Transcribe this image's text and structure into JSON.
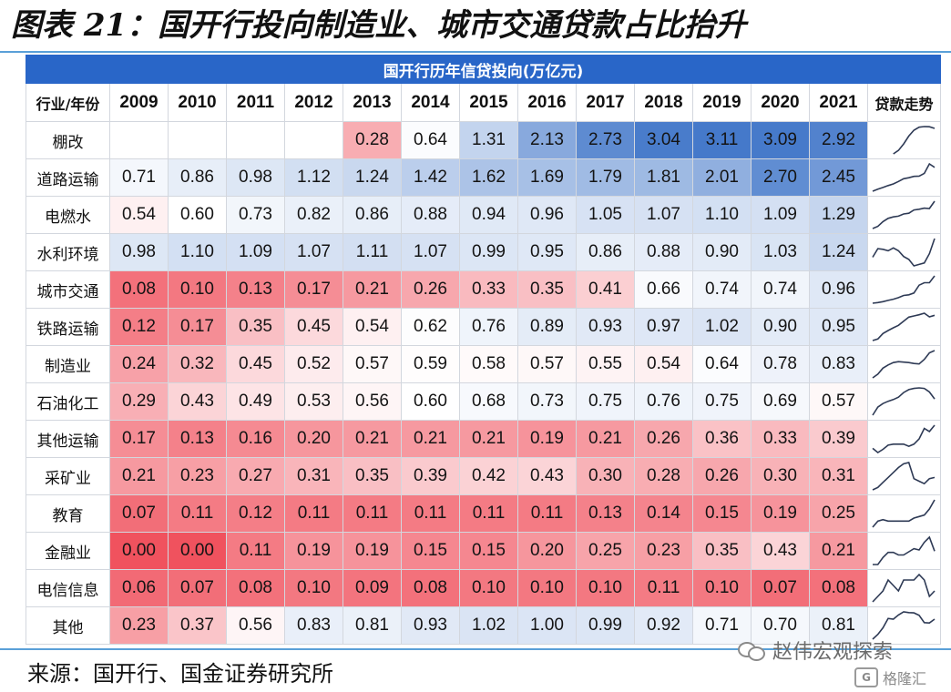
{
  "page": {
    "title": "图表 21：国开行投向制造业、城市交通贷款占比抬升",
    "source": "来源：国开行、国金证券研究所",
    "watermark": "赵伟宏观探索",
    "watermark2_logo": "G",
    "watermark2": "格隆汇"
  },
  "colors": {
    "banner": "#2966c8",
    "high": "#3b72c7",
    "mid": "#ffffff",
    "low": "#f0525e",
    "sparkline": "#2e3a55",
    "rule": "#5aa0d8"
  },
  "chart_data": {
    "type": "heatmap",
    "title": "国开行历年信贷投向(万亿元)",
    "corner_label": "行业/年份",
    "trend_label": "贷款走势",
    "years": [
      "2009",
      "2010",
      "2011",
      "2012",
      "2013",
      "2014",
      "2015",
      "2016",
      "2017",
      "2018",
      "2019",
      "2020",
      "2021"
    ],
    "rows": [
      {
        "label": "棚改",
        "values": [
          null,
          null,
          null,
          null,
          0.28,
          0.64,
          1.31,
          2.13,
          2.73,
          3.04,
          3.11,
          3.09,
          2.92
        ]
      },
      {
        "label": "道路运输",
        "values": [
          0.71,
          0.86,
          0.98,
          1.12,
          1.24,
          1.42,
          1.62,
          1.69,
          1.79,
          1.81,
          2.01,
          2.7,
          2.45
        ]
      },
      {
        "label": "电燃水",
        "values": [
          0.54,
          0.6,
          0.73,
          0.82,
          0.86,
          0.88,
          0.94,
          0.96,
          1.05,
          1.07,
          1.1,
          1.09,
          1.29
        ]
      },
      {
        "label": "水利环境",
        "values": [
          0.98,
          1.1,
          1.09,
          1.07,
          1.11,
          1.07,
          0.99,
          0.95,
          0.86,
          0.88,
          0.9,
          1.03,
          1.24
        ]
      },
      {
        "label": "城市交通",
        "values": [
          0.08,
          0.1,
          0.13,
          0.17,
          0.21,
          0.26,
          0.33,
          0.35,
          0.41,
          0.66,
          0.74,
          0.74,
          0.96
        ]
      },
      {
        "label": "铁路运输",
        "values": [
          0.12,
          0.17,
          0.35,
          0.45,
          0.54,
          0.62,
          0.76,
          0.89,
          0.93,
          0.97,
          1.02,
          0.9,
          0.95
        ]
      },
      {
        "label": "制造业",
        "values": [
          0.24,
          0.32,
          0.45,
          0.52,
          0.57,
          0.59,
          0.58,
          0.57,
          0.55,
          0.54,
          0.64,
          0.78,
          0.83
        ]
      },
      {
        "label": "石油化工",
        "values": [
          0.29,
          0.43,
          0.49,
          0.53,
          0.56,
          0.6,
          0.68,
          0.73,
          0.75,
          0.76,
          0.75,
          0.69,
          0.57
        ]
      },
      {
        "label": "其他运输",
        "values": [
          0.17,
          0.13,
          0.16,
          0.2,
          0.21,
          0.21,
          0.21,
          0.19,
          0.21,
          0.26,
          0.36,
          0.33,
          0.39
        ]
      },
      {
        "label": "采矿业",
        "values": [
          0.21,
          0.23,
          0.27,
          0.31,
          0.35,
          0.39,
          0.42,
          0.43,
          0.3,
          0.28,
          0.26,
          0.3,
          0.31
        ]
      },
      {
        "label": "教育",
        "values": [
          0.07,
          0.11,
          0.12,
          0.11,
          0.11,
          0.11,
          0.11,
          0.11,
          0.13,
          0.14,
          0.15,
          0.19,
          0.25
        ]
      },
      {
        "label": "金融业",
        "values": [
          0.0,
          0.0,
          0.11,
          0.19,
          0.19,
          0.15,
          0.15,
          0.2,
          0.25,
          0.23,
          0.35,
          0.43,
          0.21
        ]
      },
      {
        "label": "电信信息",
        "values": [
          0.06,
          0.07,
          0.08,
          0.1,
          0.09,
          0.08,
          0.1,
          0.1,
          0.1,
          0.11,
          0.1,
          0.07,
          0.08
        ]
      },
      {
        "label": "其他",
        "values": [
          0.23,
          0.37,
          0.56,
          0.83,
          0.81,
          0.93,
          1.02,
          1.0,
          0.99,
          0.92,
          0.71,
          0.7,
          0.81
        ]
      }
    ]
  }
}
